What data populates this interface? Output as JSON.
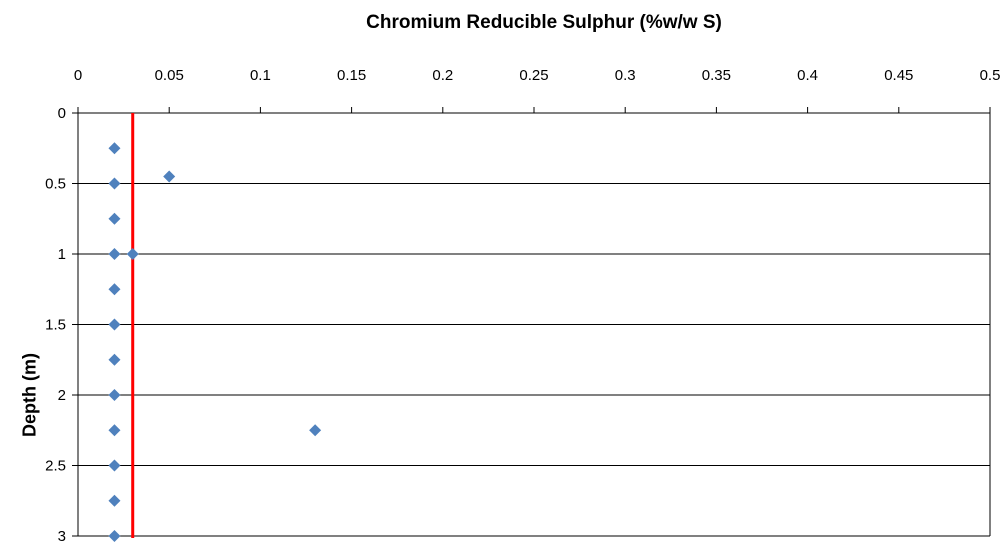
{
  "chart_data": {
    "type": "scatter",
    "title": "Chromium Reducible Sulphur (%w/w S)",
    "xlabel": "",
    "ylabel": "Depth (m)",
    "xlim": [
      0,
      0.5
    ],
    "ylim": [
      0,
      3
    ],
    "y_inverted": true,
    "x_axis_position": "top",
    "grid": "horizontal",
    "x_ticks": [
      "0",
      "0.05",
      "0.1",
      "0.15",
      "0.2",
      "0.25",
      "0.3",
      "0.35",
      "0.4",
      "0.45",
      "0.5"
    ],
    "y_ticks": [
      "0",
      "0.5",
      "1",
      "1.5",
      "2",
      "2.5",
      "3"
    ],
    "series": [
      {
        "marker": "diamond",
        "color": "#4F81BD",
        "points": [
          {
            "x": 0.02,
            "y": 0.25
          },
          {
            "x": 0.02,
            "y": 0.5
          },
          {
            "x": 0.05,
            "y": 0.45
          },
          {
            "x": 0.02,
            "y": 0.75
          },
          {
            "x": 0.02,
            "y": 1.0
          },
          {
            "x": 0.03,
            "y": 1.0
          },
          {
            "x": 0.02,
            "y": 1.25
          },
          {
            "x": 0.02,
            "y": 1.5
          },
          {
            "x": 0.02,
            "y": 1.75
          },
          {
            "x": 0.02,
            "y": 2.0
          },
          {
            "x": 0.02,
            "y": 2.25
          },
          {
            "x": 0.13,
            "y": 2.25
          },
          {
            "x": 0.02,
            "y": 2.5
          },
          {
            "x": 0.02,
            "y": 2.75
          },
          {
            "x": 0.02,
            "y": 3.0
          }
        ]
      }
    ],
    "reference_line": {
      "x": 0.03,
      "color": "#FF0000"
    }
  }
}
